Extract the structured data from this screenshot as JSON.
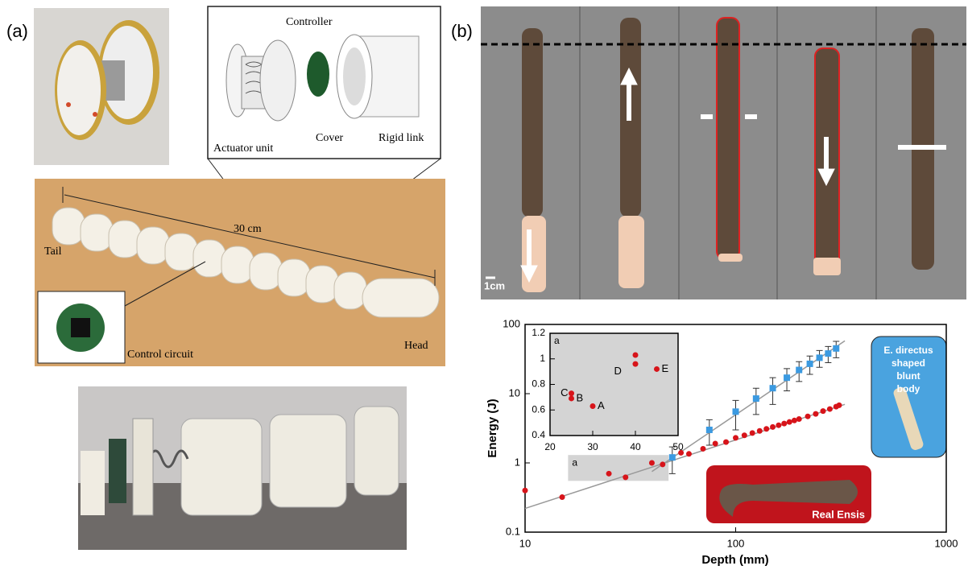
{
  "panel_a": {
    "label": "(a)",
    "callouts": [
      "Controller",
      "Actuator unit",
      "Cover",
      "Rigid link"
    ],
    "length": "30 cm",
    "tail": "Tail",
    "head": "Head",
    "circuit": "Control circuit"
  },
  "panel_b": {
    "label": "(b)",
    "scale": "1cm"
  },
  "chart_data": [
    {
      "type": "scatter",
      "log": true,
      "xlabel": "Depth (mm)",
      "ylabel": "Energy (J)",
      "xlim": [
        10,
        1000
      ],
      "ylim": [
        0.1,
        100
      ],
      "xticks": [
        10,
        100,
        1000
      ],
      "yticks": [
        0.1,
        1,
        10,
        100
      ],
      "highlight": {
        "label": "a",
        "xlim": [
          16,
          48
        ],
        "ylim": [
          0.55,
          1.3
        ]
      },
      "fit_lines": [
        {
          "color": "#999999",
          "x": [
            10,
            330
          ],
          "values": [
            0.22,
            7
          ]
        },
        {
          "color": "#999999",
          "x": [
            40,
            330
          ],
          "values": [
            0.75,
            58
          ]
        }
      ],
      "series": [
        {
          "name": "E. directus shaped blunt body",
          "color": "#3b9ae1",
          "marker": "square",
          "x": [
            50,
            75,
            100,
            125,
            150,
            175,
            200,
            225,
            250,
            275,
            300
          ],
          "values": [
            1.2,
            3,
            5.5,
            8.5,
            12,
            17,
            22,
            27,
            33,
            38,
            45
          ],
          "errors": [
            0.5,
            1.2,
            2.5,
            3.5,
            5,
            6,
            7,
            8,
            9,
            10,
            12
          ]
        },
        {
          "name": "Real Ensis",
          "color": "#d7141a",
          "marker": "circle",
          "x": [
            10,
            15,
            25,
            30,
            40,
            45,
            55,
            60,
            70,
            80,
            90,
            100,
            110,
            120,
            130,
            140,
            150,
            160,
            170,
            180,
            190,
            200,
            220,
            240,
            260,
            280,
            300,
            310
          ],
          "values": [
            0.4,
            0.32,
            0.7,
            0.62,
            1.0,
            0.95,
            1.4,
            1.35,
            1.6,
            1.9,
            2.0,
            2.3,
            2.5,
            2.7,
            2.9,
            3.1,
            3.3,
            3.5,
            3.7,
            3.9,
            4.1,
            4.3,
            4.7,
            5.1,
            5.6,
            6.0,
            6.5,
            6.8
          ]
        }
      ]
    },
    {
      "type": "scatter",
      "log": false,
      "title": "a",
      "xlim": [
        20,
        50
      ],
      "ylim": [
        0.4,
        1.2
      ],
      "xticks": [
        20,
        30,
        40,
        50
      ],
      "yticks": [
        0.4,
        0.6,
        0.8,
        1,
        1.2
      ],
      "annotation": "D",
      "series": [
        {
          "color": "#d7141a",
          "marker": "circle",
          "x": [
            25,
            25,
            30,
            40,
            40,
            45
          ],
          "values": [
            0.73,
            0.69,
            0.63,
            1.03,
            0.96,
            0.92
          ],
          "point_labels": [
            "C",
            "B",
            "A",
            null,
            null,
            "E"
          ]
        }
      ]
    }
  ]
}
